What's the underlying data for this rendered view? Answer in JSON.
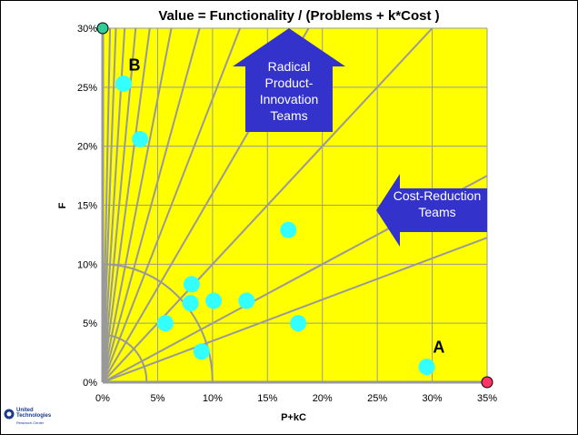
{
  "chart_data": {
    "type": "scatter",
    "title": "Value = Functionality / (Problems + k*Cost )",
    "xlabel": "P+kC",
    "ylabel": "F",
    "xlim": [
      0,
      0.35
    ],
    "ylim": [
      0,
      0.3
    ],
    "x_ticks": [
      "0%",
      "5%",
      "10%",
      "15%",
      "20%",
      "25%",
      "30%",
      "35%"
    ],
    "y_ticks": [
      "0%",
      "5%",
      "10%",
      "15%",
      "20%",
      "25%",
      "30%"
    ],
    "grid": true,
    "background": "#ffff00",
    "points": [
      {
        "x": 0.019,
        "y": 0.253
      },
      {
        "x": 0.034,
        "y": 0.206
      },
      {
        "x": 0.169,
        "y": 0.129
      },
      {
        "x": 0.081,
        "y": 0.083
      },
      {
        "x": 0.08,
        "y": 0.067
      },
      {
        "x": 0.101,
        "y": 0.069
      },
      {
        "x": 0.131,
        "y": 0.069
      },
      {
        "x": 0.057,
        "y": 0.05
      },
      {
        "x": 0.178,
        "y": 0.05
      },
      {
        "x": 0.09,
        "y": 0.026
      },
      {
        "x": 0.295,
        "y": 0.013
      }
    ],
    "point_color": "#33ffff",
    "ray_slopes": [
      0.35,
      0.5,
      1.0,
      1.6,
      2.4,
      3.4,
      4.8,
      7.0,
      10.0,
      15.0,
      25.0,
      45.0
    ],
    "arc_radii": [
      0.1,
      0.04
    ],
    "ideal_point": {
      "x": 0,
      "y": 0.3,
      "color": "#33cc99"
    },
    "worst_point": {
      "x": 0.35,
      "y": 0,
      "color": "#ff3366"
    },
    "annotations": [
      {
        "text": "B",
        "x": 0.029,
        "y": 0.264
      },
      {
        "text": "A",
        "x": 0.306,
        "y": 0.025
      }
    ],
    "arrows": [
      {
        "direction": "up",
        "lines": [
          "Radical",
          "Product-",
          "Innovation",
          "Teams"
        ],
        "color": "#3333cc"
      },
      {
        "direction": "left",
        "lines": [
          "Cost-Reduction",
          "Teams"
        ],
        "color": "#3333cc"
      }
    ]
  },
  "logo": {
    "name_line1": "United",
    "name_line2": "Technologies",
    "subtitle": "Research Center"
  }
}
